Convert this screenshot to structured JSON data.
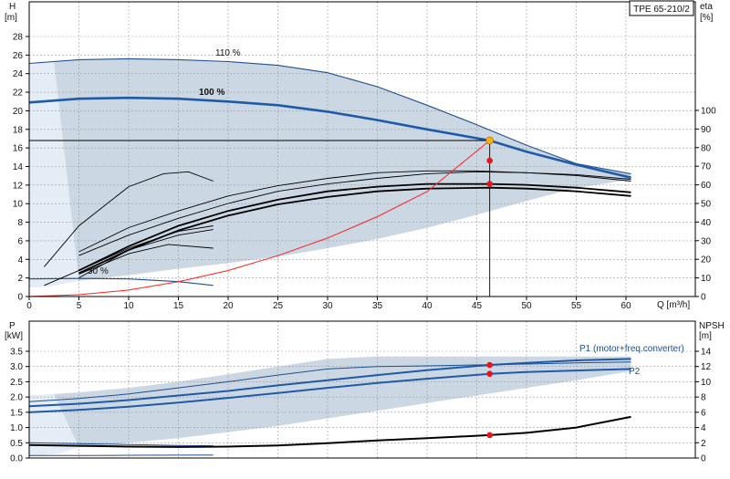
{
  "model": "TPE 65-210/2",
  "colors": {
    "envelope": "#ccd7e4",
    "envelope_light": "#e4ecf5",
    "curve_blue": "#1f4f8f",
    "curve_blue_bold": "#1f5aa8",
    "system_curve": "#ff2020",
    "marker": "#e8161a",
    "duty_marker": "#f3b21a"
  },
  "chart_data": [
    {
      "id": "head",
      "type": "line",
      "xlabel": "Q [m³/h]",
      "ylabel_top": "H",
      "ylabel_unit": "[m]",
      "y2label_top": "eta",
      "y2label_unit": "[%]",
      "xlim": [
        0,
        64
      ],
      "ylim": [
        0,
        30
      ],
      "y2lim": [
        0,
        130
      ],
      "xticks": [
        0,
        5,
        10,
        15,
        20,
        25,
        30,
        35,
        40,
        45,
        50,
        55,
        60
      ],
      "yticks": [
        0,
        2,
        4,
        6,
        8,
        10,
        12,
        14,
        16,
        18,
        20,
        22,
        24,
        26,
        28
      ],
      "y2ticks": [
        0,
        10,
        20,
        30,
        40,
        50,
        60,
        70,
        80,
        90,
        100
      ],
      "grid": true,
      "envelope_upper": [
        [
          0,
          25.1
        ],
        [
          5,
          25.5
        ],
        [
          10,
          25.6
        ],
        [
          15,
          25.5
        ],
        [
          20,
          25.3
        ],
        [
          25,
          24.9
        ],
        [
          30,
          24.1
        ],
        [
          35,
          22.6
        ],
        [
          40,
          20.6
        ],
        [
          45,
          18.5
        ],
        [
          50,
          16.3
        ],
        [
          55,
          14.3
        ],
        [
          60.5,
          13.2
        ]
      ],
      "envelope_lower": [
        [
          60.5,
          12.6
        ],
        [
          55,
          11.7
        ],
        [
          50,
          10.3
        ],
        [
          45,
          8.8
        ],
        [
          40,
          7.4
        ],
        [
          35,
          6.2
        ],
        [
          30,
          5.2
        ],
        [
          25,
          4.3
        ],
        [
          20,
          3.6
        ],
        [
          15,
          3.0
        ],
        [
          10,
          2.3
        ],
        [
          5,
          1.7
        ],
        [
          3,
          1.3
        ],
        [
          1.5,
          1.0
        ],
        [
          0,
          1.0
        ]
      ],
      "curves": [
        {
          "label": "110 %",
          "bold": false,
          "points": [
            [
              0,
              25.1
            ],
            [
              5,
              25.5
            ],
            [
              10,
              25.6
            ],
            [
              15,
              25.5
            ],
            [
              20,
              25.3
            ],
            [
              25,
              24.9
            ],
            [
              30,
              24.1
            ],
            [
              35,
              22.6
            ],
            [
              40,
              20.6
            ],
            [
              45,
              18.5
            ],
            [
              50,
              16.3
            ],
            [
              55,
              14.3
            ],
            [
              60.5,
              13.2
            ]
          ]
        },
        {
          "label": "100 %",
          "bold": true,
          "points": [
            [
              0,
              20.9
            ],
            [
              5,
              21.3
            ],
            [
              10,
              21.4
            ],
            [
              15,
              21.3
            ],
            [
              20,
              21.0
            ],
            [
              25,
              20.6
            ],
            [
              30,
              19.9
            ],
            [
              35,
              19.0
            ],
            [
              40,
              18.0
            ],
            [
              46.3,
              16.8
            ],
            [
              50,
              15.6
            ],
            [
              55,
              14.2
            ],
            [
              60.5,
              12.8
            ]
          ]
        },
        {
          "label": "30 %",
          "bold": false,
          "points": [
            [
              0,
              1.9
            ],
            [
              5,
              1.95
            ],
            [
              10,
              1.9
            ],
            [
              15,
              1.6
            ],
            [
              18.5,
              1.2
            ]
          ]
        }
      ],
      "efficiency_curves": [
        {
          "name": "eta_thin_1",
          "points": [
            [
              5,
              22
            ],
            [
              10,
              33
            ],
            [
              15,
              42
            ],
            [
              20,
              50
            ],
            [
              25,
              56.5
            ],
            [
              30,
              60.5
            ],
            [
              35,
              63.5
            ],
            [
              40,
              66
            ],
            [
              45,
              67
            ],
            [
              50,
              66.5
            ],
            [
              55,
              65
            ],
            [
              60.5,
              62
            ]
          ]
        },
        {
          "name": "eta_thin_2",
          "points": [
            [
              5,
              24
            ],
            [
              10,
              37
            ],
            [
              15,
              46
            ],
            [
              20,
              54
            ],
            [
              25,
              59.5
            ],
            [
              30,
              63.5
            ],
            [
              35,
              66.5
            ],
            [
              40,
              67.5
            ],
            [
              45,
              67.5
            ],
            [
              50,
              66.5
            ],
            [
              55,
              65.5
            ],
            [
              60.5,
              63
            ]
          ]
        },
        {
          "name": "eta_main",
          "points": [
            [
              5,
              14
            ],
            [
              10,
              27
            ],
            [
              15,
              38
            ],
            [
              20,
              46
            ],
            [
              25,
              52
            ],
            [
              30,
              56.5
            ],
            [
              35,
              59
            ],
            [
              40,
              60.5
            ],
            [
              46.3,
              60.5
            ],
            [
              50,
              60
            ],
            [
              55,
              58.5
            ],
            [
              60.5,
              56
            ]
          ]
        },
        {
          "name": "eta_overall",
          "points": [
            [
              5,
              12.5
            ],
            [
              10,
              25
            ],
            [
              15,
              35.5
            ],
            [
              20,
              43.5
            ],
            [
              25,
              49.5
            ],
            [
              30,
              53.5
            ],
            [
              35,
              56.5
            ],
            [
              40,
              58
            ],
            [
              46.3,
              58.5
            ],
            [
              50,
              58
            ],
            [
              55,
              56.5
            ],
            [
              60.5,
              54
            ]
          ]
        },
        {
          "name": "eta_low_1",
          "points": [
            [
              1.5,
              6
            ],
            [
              5,
              14
            ],
            [
              10,
              26
            ],
            [
              15,
              35
            ],
            [
              18.5,
              38
            ]
          ]
        },
        {
          "name": "eta_low_2",
          "points": [
            [
              5,
              10
            ],
            [
              10,
              25
            ],
            [
              15,
              33
            ],
            [
              18.5,
              36
            ]
          ]
        },
        {
          "name": "eta_low_3",
          "points": [
            [
              5,
              12
            ],
            [
              10,
              23
            ],
            [
              14,
              28
            ],
            [
              18.5,
              26
            ]
          ]
        },
        {
          "name": "eta_small_arc",
          "points": [
            [
              1.5,
              16
            ],
            [
              5,
              38
            ],
            [
              10,
              59
            ],
            [
              13.5,
              66
            ],
            [
              16,
              67
            ],
            [
              18.5,
              62
            ]
          ]
        }
      ],
      "system_curve": [
        [
          0,
          0
        ],
        [
          5,
          0.2
        ],
        [
          10,
          0.7
        ],
        [
          15,
          1.6
        ],
        [
          20,
          2.8
        ],
        [
          25,
          4.4
        ],
        [
          30,
          6.3
        ],
        [
          35,
          8.6
        ],
        [
          40,
          11.3
        ],
        [
          46.3,
          16.8
        ]
      ],
      "duty_point": {
        "q": 46.3,
        "h": 16.8
      },
      "markers": [
        {
          "q": 46.3,
          "y2": 73
        },
        {
          "q": 46.3,
          "y2": 60.5
        }
      ]
    },
    {
      "id": "power",
      "type": "line",
      "xlabel": "",
      "ylabel_top": "P",
      "ylabel_unit": "[kW]",
      "y2label_top": "NPSH",
      "y2label_unit": "[m]",
      "xlim": [
        0,
        64
      ],
      "ylim": [
        0,
        4.0
      ],
      "y2lim": [
        0,
        16
      ],
      "yticks": [
        0,
        0.5,
        1.0,
        1.5,
        2.0,
        2.5,
        3.0,
        3.5
      ],
      "ytick_labels": [
        "0.0",
        "0.5",
        "1.0",
        "1.5",
        "2.0",
        "2.5",
        "3.0",
        "3.5"
      ],
      "y2ticks": [
        0,
        2,
        4,
        6,
        8,
        10,
        12,
        14
      ],
      "grid": true,
      "envelope_upper": [
        [
          0,
          2.05
        ],
        [
          5,
          2.15
        ],
        [
          10,
          2.3
        ],
        [
          15,
          2.5
        ],
        [
          20,
          2.75
        ],
        [
          25,
          3.0
        ],
        [
          30,
          3.25
        ],
        [
          35,
          3.33
        ],
        [
          40,
          3.33
        ],
        [
          45,
          3.33
        ],
        [
          50,
          3.33
        ],
        [
          55,
          3.33
        ],
        [
          60.5,
          3.33
        ]
      ],
      "envelope_lower": [
        [
          60.5,
          2.85
        ],
        [
          55,
          2.55
        ],
        [
          50,
          2.3
        ],
        [
          45,
          2.05
        ],
        [
          40,
          1.8
        ],
        [
          35,
          1.55
        ],
        [
          30,
          1.3
        ],
        [
          25,
          1.05
        ],
        [
          20,
          0.85
        ],
        [
          15,
          0.65
        ],
        [
          10,
          0.5
        ],
        [
          5,
          0.35
        ],
        [
          3,
          0.15
        ],
        [
          0,
          0.05
        ]
      ],
      "curves": [
        {
          "label": "P1 (motor+freq.converter)",
          "bold": true,
          "points": [
            [
              0,
              1.7
            ],
            [
              5,
              1.78
            ],
            [
              10,
              1.9
            ],
            [
              15,
              2.05
            ],
            [
              20,
              2.2
            ],
            [
              25,
              2.38
            ],
            [
              30,
              2.55
            ],
            [
              35,
              2.72
            ],
            [
              40,
              2.88
            ],
            [
              46.3,
              3.05
            ],
            [
              50,
              3.12
            ],
            [
              55,
              3.2
            ],
            [
              60.5,
              3.25
            ]
          ]
        },
        {
          "label": "P2",
          "bold": true,
          "points": [
            [
              0,
              1.5
            ],
            [
              5,
              1.58
            ],
            [
              10,
              1.68
            ],
            [
              15,
              1.82
            ],
            [
              20,
              1.97
            ],
            [
              25,
              2.13
            ],
            [
              30,
              2.3
            ],
            [
              35,
              2.46
            ],
            [
              40,
              2.6
            ],
            [
              46.3,
              2.76
            ],
            [
              50,
              2.82
            ],
            [
              55,
              2.87
            ],
            [
              60.5,
              2.92
            ]
          ]
        },
        {
          "label": "",
          "bold": false,
          "points": [
            [
              0,
              1.85
            ],
            [
              5,
              1.95
            ],
            [
              10,
              2.1
            ],
            [
              15,
              2.3
            ],
            [
              20,
              2.5
            ],
            [
              25,
              2.72
            ],
            [
              30,
              2.92
            ],
            [
              35,
              3.0
            ],
            [
              40,
              3.02
            ],
            [
              45,
              3.05
            ],
            [
              50,
              3.08
            ],
            [
              55,
              3.12
            ],
            [
              60.5,
              3.15
            ]
          ]
        },
        {
          "label": "",
          "bold": false,
          "points": [
            [
              0,
              0.5
            ],
            [
              5,
              0.47
            ],
            [
              10,
              0.44
            ],
            [
              15,
              0.41
            ],
            [
              18.5,
              0.4
            ]
          ]
        },
        {
          "label": "",
          "bold": false,
          "points": [
            [
              0,
              0.08
            ],
            [
              5,
              0.08
            ],
            [
              10,
              0.09
            ],
            [
              18.5,
              0.1
            ]
          ]
        }
      ],
      "npsh_curve": [
        [
          0,
          1.7
        ],
        [
          5,
          1.6
        ],
        [
          10,
          1.5
        ],
        [
          15,
          1.45
        ],
        [
          20,
          1.5
        ],
        [
          25,
          1.65
        ],
        [
          30,
          1.95
        ],
        [
          35,
          2.3
        ],
        [
          40,
          2.6
        ],
        [
          46.3,
          3.0
        ],
        [
          50,
          3.3
        ],
        [
          55,
          4.0
        ],
        [
          60.5,
          5.4
        ]
      ],
      "markers": [
        {
          "q": 46.3,
          "p": 3.05
        },
        {
          "q": 46.3,
          "p": 2.76
        },
        {
          "q": 46.3,
          "y2": 3.0
        }
      ]
    }
  ]
}
